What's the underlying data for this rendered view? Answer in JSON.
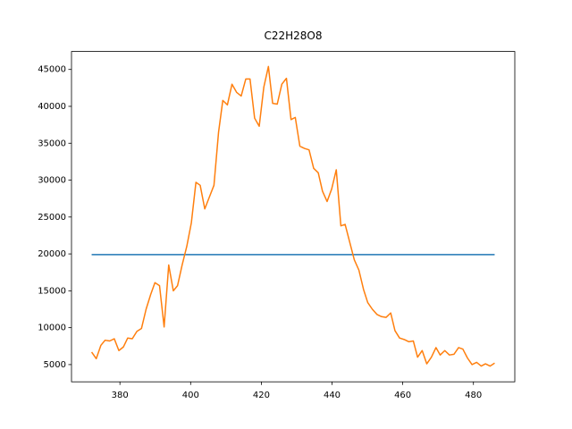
{
  "chart_data": {
    "type": "line",
    "title": "C22H28O8",
    "xlim": [
      366.3,
      491.7
    ],
    "ylim": [
      2665,
      47435
    ],
    "xticks": [
      380,
      400,
      420,
      440,
      460,
      480
    ],
    "yticks": [
      5000,
      10000,
      15000,
      20000,
      25000,
      30000,
      35000,
      40000,
      45000
    ],
    "grid": false,
    "series": [
      {
        "color": "#1f77b4",
        "x": [
          372,
          486
        ],
        "values": [
          19900,
          19900
        ]
      },
      {
        "color": "#ff7f0e",
        "x": [
          372.0,
          373.3,
          374.6,
          375.8,
          377.1,
          378.4,
          379.7,
          381.0,
          382.2,
          383.5,
          384.8,
          386.1,
          387.4,
          388.7,
          389.9,
          391.2,
          392.5,
          393.8,
          395.1,
          396.3,
          397.6,
          398.9,
          400.2,
          401.5,
          402.7,
          404.0,
          405.3,
          406.6,
          407.9,
          409.1,
          410.4,
          411.7,
          413.0,
          414.3,
          415.6,
          416.8,
          418.1,
          419.4,
          420.7,
          422.0,
          423.2,
          424.5,
          425.8,
          427.1,
          428.4,
          429.6,
          430.9,
          432.2,
          433.5,
          434.8,
          436.1,
          437.3,
          438.6,
          439.9,
          441.2,
          442.5,
          443.7,
          445.0,
          446.3,
          447.6,
          448.9,
          450.1,
          451.4,
          452.7,
          454.0,
          455.3,
          456.6,
          457.8,
          459.1,
          460.4,
          461.7,
          463.0,
          464.2,
          465.5,
          466.8,
          468.1,
          469.4,
          470.6,
          471.9,
          473.2,
          474.5,
          475.8,
          477.0,
          478.3,
          479.6,
          480.9,
          482.2,
          483.4,
          484.7,
          486.0
        ],
        "values": [
          6700,
          5800,
          7600,
          8300,
          8200,
          8500,
          6900,
          7400,
          8600,
          8500,
          9500,
          9900,
          12500,
          14500,
          16100,
          15700,
          10100,
          18500,
          15000,
          15700,
          18500,
          21000,
          24200,
          29700,
          29300,
          26100,
          27700,
          29300,
          36500,
          40800,
          40200,
          43000,
          41900,
          41400,
          43700,
          43700,
          38400,
          37300,
          42600,
          45400,
          40400,
          40300,
          43000,
          43800,
          38200,
          38500,
          34600,
          34300,
          34100,
          31600,
          31000,
          28500,
          27100,
          28800,
          31400,
          23800,
          24000,
          21600,
          19200,
          17800,
          15200,
          13400,
          12500,
          11800,
          11500,
          11400,
          12000,
          9600,
          8600,
          8400,
          8100,
          8200,
          6000,
          6900,
          5100,
          6000,
          7300,
          6300,
          6900,
          6300,
          6400,
          7300,
          7100,
          5900,
          5000,
          5300,
          4800,
          5100,
          4800,
          5200
        ]
      }
    ]
  }
}
